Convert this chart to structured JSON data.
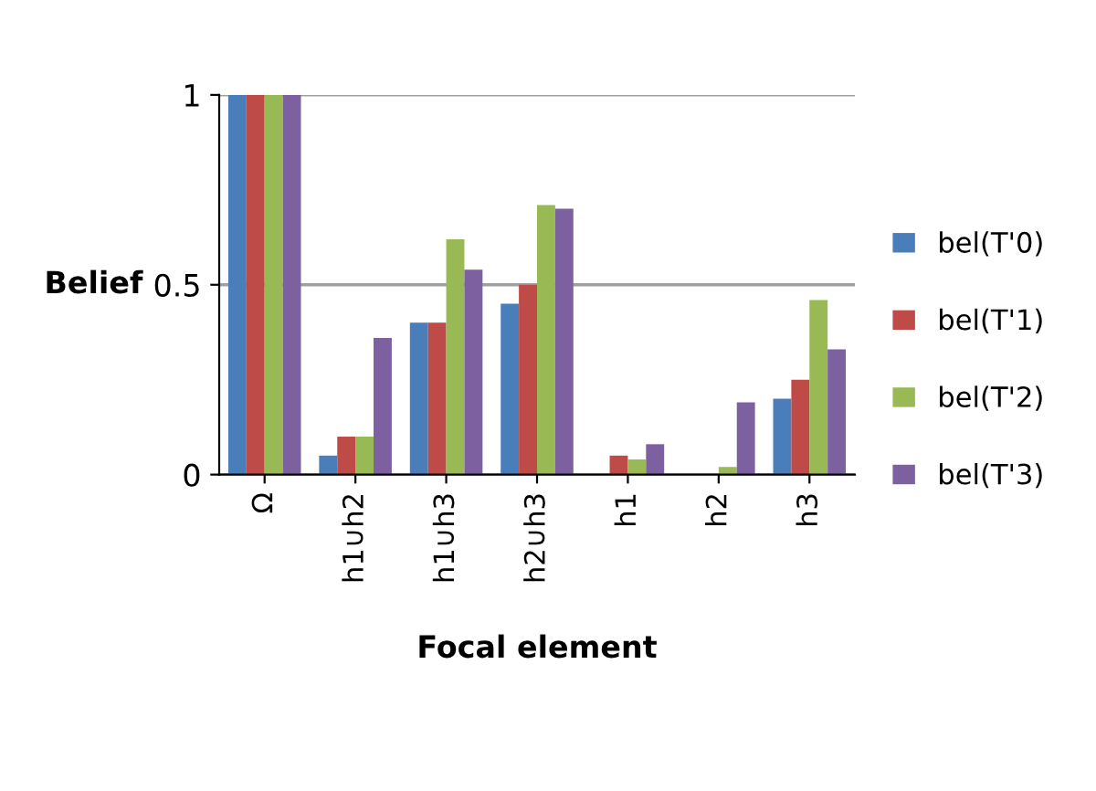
{
  "chart_data": {
    "type": "bar",
    "xlabel": "Focal element",
    "ylabel": "Belief",
    "categories": [
      "Ω",
      "h1∪h2",
      "h1∪h3",
      "h2∪h3",
      "h1",
      "h2",
      "h3"
    ],
    "series": [
      {
        "name": "bel(T'0)",
        "color": "#4a7ebb",
        "values": [
          1,
          0.05,
          0.4,
          0.45,
          0,
          0,
          0.2
        ]
      },
      {
        "name": "bel(T'1)",
        "color": "#be4b48",
        "values": [
          1,
          0.1,
          0.4,
          0.5,
          0.05,
          0,
          0.25
        ]
      },
      {
        "name": "bel(T'2)",
        "color": "#98b954",
        "values": [
          1,
          0.1,
          0.62,
          0.71,
          0.04,
          0.02,
          0.46
        ]
      },
      {
        "name": "bel(T'3)",
        "color": "#7d60a0",
        "values": [
          1,
          0.36,
          0.54,
          0.7,
          0.08,
          0.19,
          0.33
        ]
      }
    ],
    "ylim": [
      0,
      1
    ],
    "yticks": [
      0,
      0.5,
      1
    ],
    "grid": "y",
    "legend": "right"
  }
}
